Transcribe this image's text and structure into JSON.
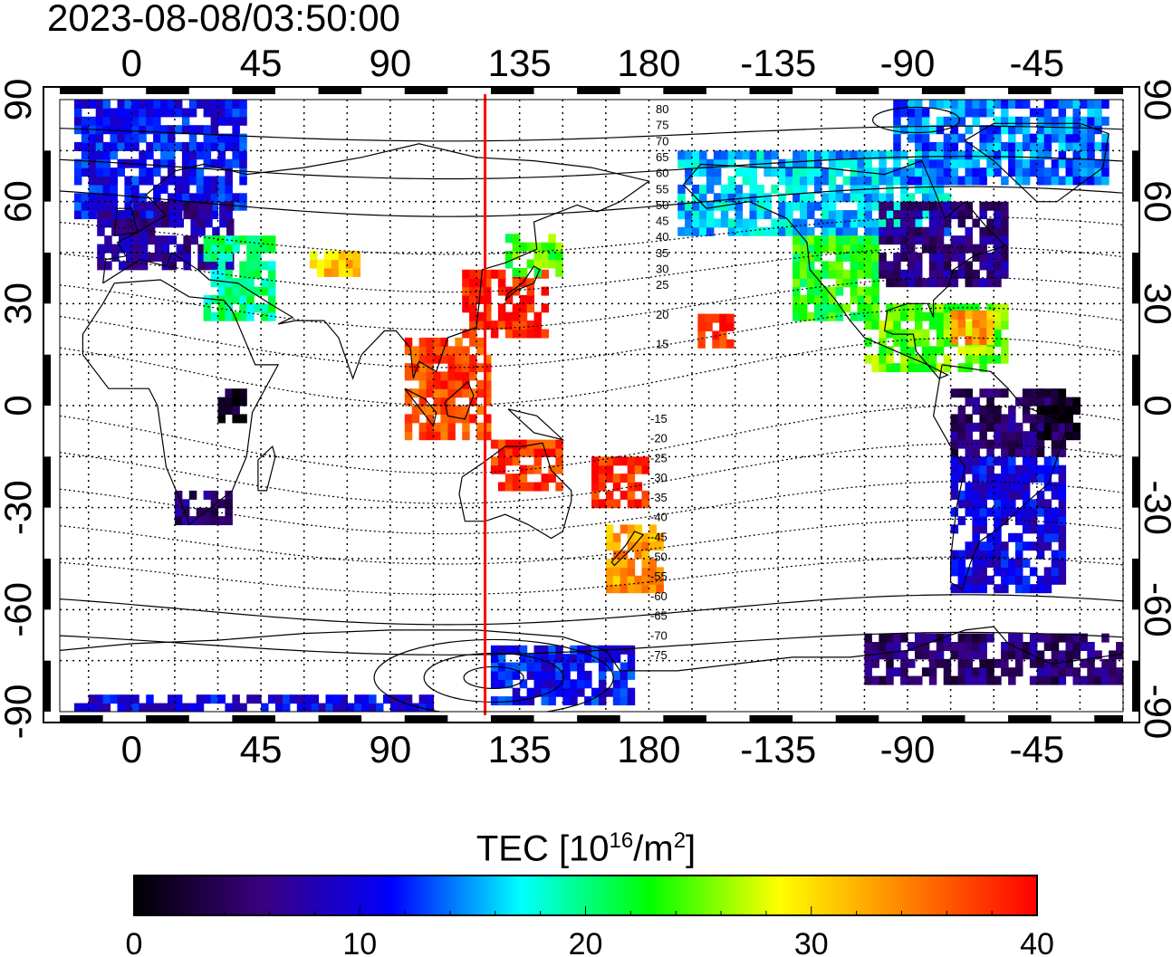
{
  "timestamp": "2023-08-08/03:50:00",
  "map": {
    "lon_start": -25,
    "lon_end": 345,
    "lat_min": -90,
    "lat_max": 90,
    "top_lon_ticks": [
      "0",
      "45",
      "90",
      "135",
      "180",
      "-135",
      "-90",
      "-45"
    ],
    "bottom_lon_ticks": [
      "0",
      "45",
      "90",
      "135",
      "180",
      "-135",
      "-90",
      "-45"
    ],
    "left_lat_ticks": [
      "90",
      "60",
      "30",
      "0",
      "-30",
      "-60",
      "-90"
    ],
    "right_lat_ticks": [
      "90",
      "60",
      "30",
      "0",
      "-30",
      "-60",
      "-90"
    ],
    "tick_lon_values": [
      0,
      45,
      90,
      135,
      180,
      225,
      270,
      315
    ],
    "tick_lat_values": [
      90,
      60,
      30,
      0,
      -30,
      -60,
      -90
    ],
    "terminator_lon": 123,
    "terminator_color": "#ff0000",
    "north_contour_labels": [
      "80",
      "75",
      "70",
      "65",
      "60",
      "55",
      "50",
      "45",
      "40",
      "35",
      "30",
      "25",
      "20",
      "15"
    ],
    "south_contour_labels": [
      "-15",
      "-20",
      "-25",
      "-30",
      "-35",
      "-40",
      "-45",
      "-50",
      "-55",
      "-60",
      "-65",
      "-70",
      "-75"
    ]
  },
  "colorbar": {
    "title_main": "TEC  [10",
    "title_sup1": "16",
    "title_mid": "/m",
    "title_sup2": "2",
    "title_end": "]",
    "min": 0,
    "max": 40,
    "tick_labels": [
      "0",
      "10",
      "20",
      "30",
      "40"
    ],
    "stops": [
      "#000000",
      "#3a0080",
      "#0000ff",
      "#00ffff",
      "#00ff00",
      "#ffff00",
      "#ff8000",
      "#ff0000"
    ]
  },
  "tec_regions": [
    {
      "name": "europe-north",
      "lon": [
        -20,
        40
      ],
      "lat": [
        55,
        88
      ],
      "tec": 11
    },
    {
      "name": "europe-central",
      "lon": [
        -12,
        35
      ],
      "lat": [
        40,
        58
      ],
      "tec": 7
    },
    {
      "name": "mediterranean",
      "lon": [
        25,
        50
      ],
      "lat": [
        25,
        48
      ],
      "tec": 20
    },
    {
      "name": "central-asia",
      "lon": [
        62,
        78
      ],
      "lat": [
        38,
        45
      ],
      "tec": 31
    },
    {
      "name": "east-asia",
      "lon": [
        115,
        145
      ],
      "lat": [
        20,
        40
      ],
      "tec": 39
    },
    {
      "name": "japan-north",
      "lon": [
        130,
        150
      ],
      "lat": [
        38,
        50
      ],
      "tec": 24
    },
    {
      "name": "southeast-asia",
      "lon": [
        95,
        125
      ],
      "lat": [
        -10,
        20
      ],
      "tec": 37
    },
    {
      "name": "australia-north",
      "lon": [
        125,
        150
      ],
      "lat": [
        -25,
        -12
      ],
      "tec": 38
    },
    {
      "name": "pacific-southwest",
      "lon": [
        160,
        180
      ],
      "lat": [
        -30,
        -15
      ],
      "tec": 38
    },
    {
      "name": "new-zealand",
      "lon": [
        165,
        185
      ],
      "lat": [
        -55,
        -35
      ],
      "tec": 33
    },
    {
      "name": "hawaii",
      "lon": [
        197,
        208
      ],
      "lat": [
        17,
        25
      ],
      "tec": 38
    },
    {
      "name": "alaska-canada",
      "lon": [
        190,
        285
      ],
      "lat": [
        50,
        75
      ],
      "tec": 16
    },
    {
      "name": "north-america-west",
      "lon": [
        230,
        260
      ],
      "lat": [
        25,
        50
      ],
      "tec": 23
    },
    {
      "name": "north-america-east",
      "lon": [
        260,
        305
      ],
      "lat": [
        35,
        58
      ],
      "tec": 6
    },
    {
      "name": "arctic-canada",
      "lon": [
        265,
        340
      ],
      "lat": [
        65,
        88
      ],
      "tec": 14
    },
    {
      "name": "central-america",
      "lon": [
        255,
        305
      ],
      "lat": [
        10,
        30
      ],
      "tec": 25
    },
    {
      "name": "caribbean",
      "lon": [
        285,
        300
      ],
      "lat": [
        18,
        27
      ],
      "tec": 33
    },
    {
      "name": "south-america-north",
      "lon": [
        285,
        325
      ],
      "lat": [
        -15,
        5
      ],
      "tec": 5
    },
    {
      "name": "brazil-east",
      "lon": [
        315,
        330
      ],
      "lat": [
        -10,
        5
      ],
      "tec": 1
    },
    {
      "name": "south-america-south",
      "lon": [
        285,
        325
      ],
      "lat": [
        -55,
        -15
      ],
      "tec": 10
    },
    {
      "name": "south-africa",
      "lon": [
        15,
        35
      ],
      "lat": [
        -35,
        -25
      ],
      "tec": 5
    },
    {
      "name": "africa-east",
      "lon": [
        30,
        40
      ],
      "lat": [
        -5,
        3
      ],
      "tec": 1
    },
    {
      "name": "antarctica-pacific",
      "lon": [
        125,
        175
      ],
      "lat": [
        -88,
        -72
      ],
      "tec": 11
    },
    {
      "name": "antarctica-atlantic",
      "lon": [
        255,
        345
      ],
      "lat": [
        -82,
        -68
      ],
      "tec": 5
    },
    {
      "name": "antarctica-south-band",
      "lon": [
        -20,
        105
      ],
      "lat": [
        -90,
        -87
      ],
      "tec": 10
    }
  ]
}
